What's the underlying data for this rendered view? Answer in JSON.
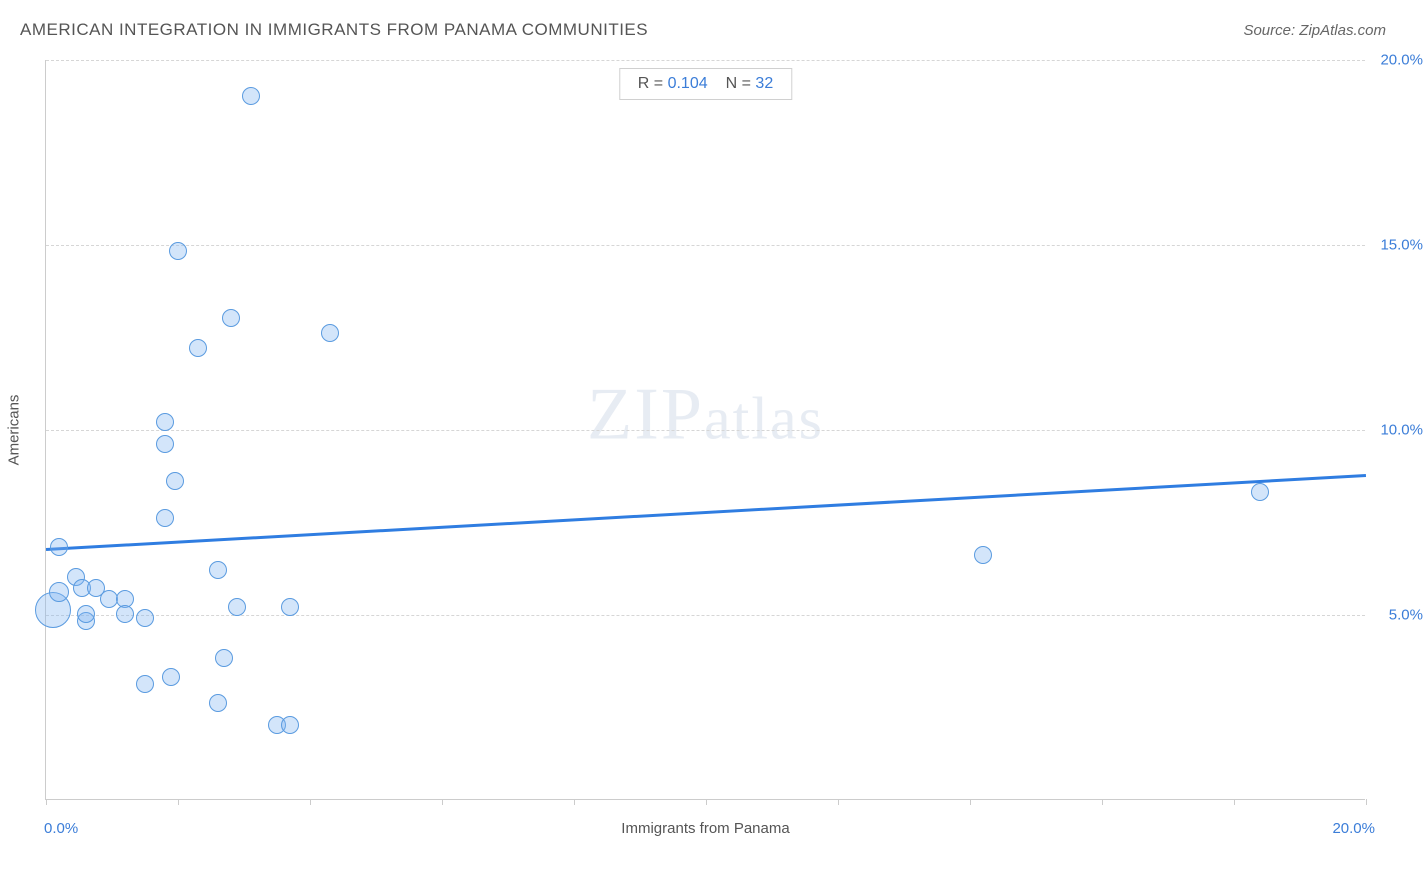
{
  "header": {
    "title": "AMERICAN INTEGRATION IN IMMIGRANTS FROM PANAMA COMMUNITIES",
    "source": "Source: ZipAtlas.com"
  },
  "legend": {
    "r_label": "R = ",
    "r_value": "0.104",
    "n_label": "N = ",
    "n_value": "32"
  },
  "watermark": {
    "zip": "ZIP",
    "atlas": "atlas"
  },
  "chart": {
    "type": "scatter",
    "xlabel": "Immigrants from Panama",
    "ylabel": "Americans",
    "xlim": [
      0,
      20
    ],
    "ylim": [
      0,
      20
    ],
    "xtick_positions": [
      0,
      2,
      4,
      6,
      8,
      10,
      12,
      14,
      16,
      18,
      20
    ],
    "xtick_labels_shown": {
      "min": "0.0%",
      "max": "20.0%"
    },
    "ytick_positions": [
      5,
      10,
      15,
      20
    ],
    "ytick_labels": [
      "5.0%",
      "10.0%",
      "15.0%",
      "20.0%"
    ],
    "background_color": "#ffffff",
    "grid_color": "#d6d6d6",
    "axis_color": "#cccccc",
    "point_fill_color": "rgba(130,180,240,0.35)",
    "point_stroke_color": "#5a9be0",
    "point_radius_default": 9,
    "trendline": {
      "color": "#2f7de1",
      "y_at_x0": 6.8,
      "y_at_x20": 8.8,
      "width": 2.5
    },
    "points": [
      {
        "x": 0.1,
        "y": 5.1,
        "r": 18
      },
      {
        "x": 0.2,
        "y": 5.6,
        "r": 10
      },
      {
        "x": 0.45,
        "y": 6.0,
        "r": 9
      },
      {
        "x": 0.2,
        "y": 6.8,
        "r": 9
      },
      {
        "x": 0.55,
        "y": 5.7,
        "r": 9
      },
      {
        "x": 0.75,
        "y": 5.7,
        "r": 9
      },
      {
        "x": 0.95,
        "y": 5.4,
        "r": 9
      },
      {
        "x": 0.6,
        "y": 4.8,
        "r": 9
      },
      {
        "x": 0.6,
        "y": 5.0,
        "r": 9
      },
      {
        "x": 1.2,
        "y": 5.4,
        "r": 9
      },
      {
        "x": 1.2,
        "y": 5.0,
        "r": 9
      },
      {
        "x": 1.5,
        "y": 4.9,
        "r": 9
      },
      {
        "x": 1.5,
        "y": 3.1,
        "r": 9
      },
      {
        "x": 1.9,
        "y": 3.3,
        "r": 9
      },
      {
        "x": 2.6,
        "y": 2.6,
        "r": 9
      },
      {
        "x": 2.7,
        "y": 3.8,
        "r": 9
      },
      {
        "x": 2.9,
        "y": 5.2,
        "r": 9
      },
      {
        "x": 2.6,
        "y": 6.2,
        "r": 9
      },
      {
        "x": 3.7,
        "y": 5.2,
        "r": 9
      },
      {
        "x": 3.5,
        "y": 2.0,
        "r": 9
      },
      {
        "x": 3.7,
        "y": 2.0,
        "r": 9
      },
      {
        "x": 1.8,
        "y": 7.6,
        "r": 9
      },
      {
        "x": 1.95,
        "y": 8.6,
        "r": 9
      },
      {
        "x": 1.8,
        "y": 9.6,
        "r": 9
      },
      {
        "x": 1.8,
        "y": 10.2,
        "r": 9
      },
      {
        "x": 2.3,
        "y": 12.2,
        "r": 9
      },
      {
        "x": 2.8,
        "y": 13.0,
        "r": 9
      },
      {
        "x": 4.3,
        "y": 12.6,
        "r": 9
      },
      {
        "x": 2.0,
        "y": 14.8,
        "r": 9
      },
      {
        "x": 3.1,
        "y": 19.0,
        "r": 9
      },
      {
        "x": 14.2,
        "y": 6.6,
        "r": 9
      },
      {
        "x": 18.4,
        "y": 8.3,
        "r": 9
      }
    ],
    "label_color": "#555555",
    "tick_label_color": "#3b7dd8",
    "label_fontsize": 15,
    "title_fontsize": 17
  }
}
